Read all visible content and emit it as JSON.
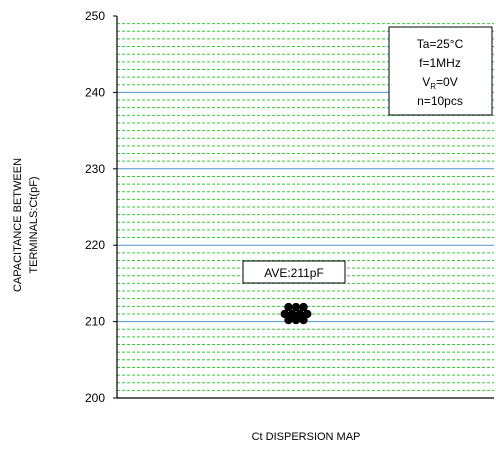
{
  "chart_data": {
    "type": "scatter",
    "title": "",
    "xlabel": "Ct DISPERSION MAP",
    "ylabel_lines": [
      "CAPACITANCE BETWEEN",
      "TERMINALS:Ct(pF)"
    ],
    "ylim": [
      200,
      250
    ],
    "yticks": [
      200,
      210,
      220,
      230,
      240,
      250
    ],
    "grid": {
      "major_step": 10,
      "minor_step": 1
    },
    "conditions": {
      "ta": "Ta=25°C",
      "f": "f=1MHz",
      "vr_main": "V",
      "vr_sub": "R",
      "vr_value": "=0V",
      "n": "n=10pcs"
    },
    "annotation": "AVE:211pF",
    "points": [
      211.9,
      211.9,
      211.9,
      211.0,
      211.0,
      211.0,
      211.0,
      210.2,
      210.2,
      210.2
    ],
    "colors": {
      "major_grid": "#4f94cd",
      "minor_grid": "#33cc33",
      "point": "#000000",
      "axis": "#000000"
    }
  }
}
